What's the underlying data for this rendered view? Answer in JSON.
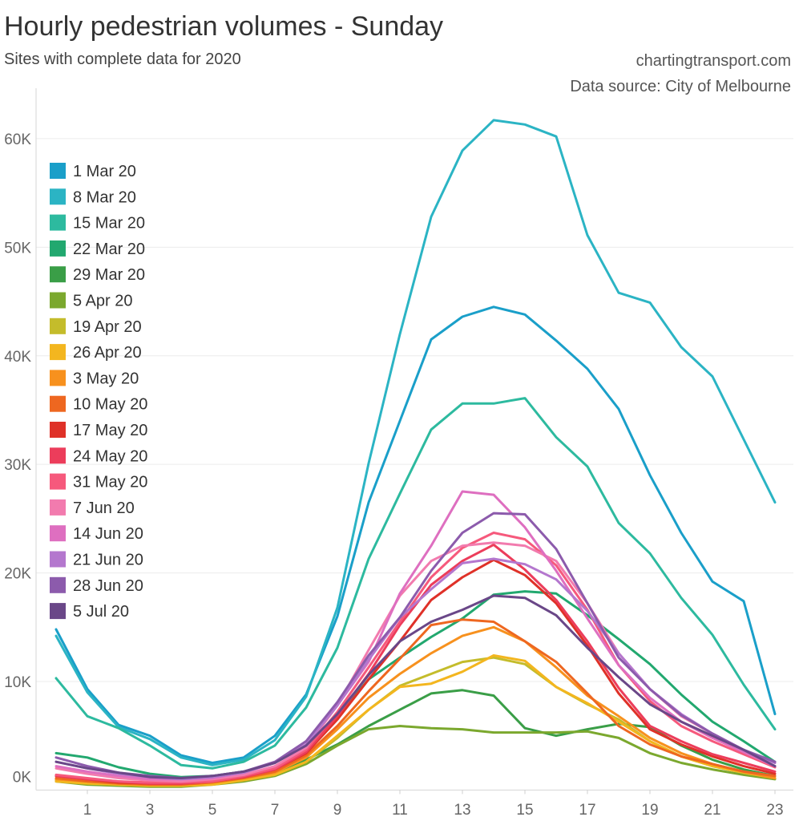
{
  "chart_data": {
    "type": "line",
    "title": "Hourly pedestrian volumes - Sunday",
    "subtitle": "Sites with complete data for 2020",
    "annotations": [
      "chartingtransport.com",
      "Data source: City of Melbourne"
    ],
    "xlabel": "",
    "ylabel": "",
    "x": [
      0,
      1,
      2,
      3,
      4,
      5,
      6,
      7,
      8,
      9,
      10,
      11,
      12,
      13,
      14,
      15,
      16,
      17,
      18,
      19,
      20,
      21,
      22,
      23
    ],
    "xlim": [
      -0.641,
      23.59
    ],
    "ylim": [
      0,
      63170
    ],
    "x_ticks": [
      1,
      3,
      5,
      7,
      9,
      11,
      13,
      15,
      17,
      19,
      21,
      23
    ],
    "x_tick_labels": [
      "1",
      "3",
      "5",
      "7",
      "9",
      "11",
      "13",
      "15",
      "17",
      "19",
      "21",
      "23"
    ],
    "y_ticks": [
      0,
      10000,
      20000,
      30000,
      40000,
      50000,
      60000
    ],
    "y_tick_labels": [
      "0K",
      "10K",
      "20K",
      "30K",
      "40K",
      "50K",
      "60K"
    ],
    "grid": true,
    "legend_position": "top-left",
    "series": [
      {
        "name": "1 Mar 20",
        "color": "#1A9FC9",
        "values": [
          14800,
          9300,
          6000,
          5000,
          3200,
          2500,
          3000,
          5000,
          8800,
          16000,
          26500,
          34000,
          41500,
          43600,
          44500,
          43800,
          41400,
          38800,
          35100,
          29000,
          23700,
          19200,
          17400,
          7000
        ]
      },
      {
        "name": "8 Mar 20",
        "color": "#2BB4C4",
        "values": [
          14200,
          9000,
          5800,
          4700,
          3000,
          2300,
          2800,
          4600,
          8600,
          16800,
          30100,
          42000,
          52800,
          58900,
          61700,
          61300,
          60200,
          51100,
          45800,
          44900,
          40800,
          38100,
          32300,
          26500
        ]
      },
      {
        "name": "15 Mar 20",
        "color": "#2DBA9F",
        "values": [
          10300,
          6800,
          5700,
          4100,
          2300,
          2000,
          2600,
          4100,
          7600,
          13100,
          21300,
          27300,
          33200,
          35600,
          35600,
          36100,
          32500,
          29800,
          24600,
          21800,
          17700,
          14300,
          9700,
          5600
        ]
      },
      {
        "name": "22 Mar 20",
        "color": "#22A86F",
        "values": [
          3400,
          3000,
          2100,
          1500,
          1200,
          1300,
          1700,
          2500,
          4100,
          6800,
          10200,
          12200,
          14100,
          15800,
          18000,
          18300,
          18100,
          16100,
          13900,
          11600,
          8800,
          6300,
          4500,
          2600
        ]
      },
      {
        "name": "29 Mar 20",
        "color": "#3A9E47",
        "values": [
          1300,
          1000,
          700,
          500,
          500,
          800,
          1100,
          1600,
          2800,
          4200,
          5900,
          7400,
          8900,
          9200,
          8700,
          5700,
          5000,
          5600,
          6100,
          5800,
          4100,
          2800,
          1900,
          1300
        ]
      },
      {
        "name": "5 Apr 20",
        "color": "#7BA82E",
        "values": [
          800,
          500,
          400,
          300,
          300,
          500,
          800,
          1300,
          2400,
          4100,
          5600,
          5900,
          5700,
          5600,
          5300,
          5300,
          5300,
          5400,
          4800,
          3400,
          2500,
          1900,
          1400,
          1000
        ]
      },
      {
        "name": "19 Apr 20",
        "color": "#C4BC2B",
        "values": [
          900,
          700,
          500,
          500,
          500,
          600,
          1000,
          1400,
          2600,
          4800,
          7400,
          9600,
          10700,
          11800,
          12200,
          11600,
          9500,
          7900,
          6500,
          4500,
          3100,
          2200,
          1600,
          1100
        ]
      },
      {
        "name": "26 Apr 20",
        "color": "#F3B61F",
        "values": [
          800,
          600,
          500,
          400,
          400,
          500,
          900,
          1400,
          2600,
          5000,
          7400,
          9500,
          9800,
          10900,
          12400,
          11900,
          9500,
          8000,
          6300,
          4500,
          3100,
          2200,
          1600,
          1100
        ]
      },
      {
        "name": "3 May 20",
        "color": "#F7911E",
        "values": [
          1000,
          800,
          600,
          500,
          500,
          700,
          1100,
          1600,
          3000,
          5600,
          8500,
          10700,
          12600,
          14200,
          15000,
          13700,
          11300,
          8700,
          6800,
          4800,
          3400,
          2400,
          1700,
          1100
        ]
      },
      {
        "name": "10 May 20",
        "color": "#EE6720",
        "values": [
          1100,
          800,
          600,
          500,
          500,
          700,
          1100,
          1700,
          3200,
          5900,
          9100,
          12100,
          15200,
          15700,
          15500,
          13700,
          11800,
          8900,
          5900,
          4200,
          3100,
          2400,
          1700,
          1300
        ]
      },
      {
        "name": "17 May 20",
        "color": "#DF3128",
        "values": [
          1300,
          1000,
          700,
          600,
          600,
          800,
          1200,
          1900,
          3400,
          6500,
          10200,
          13700,
          17500,
          19600,
          21200,
          19800,
          17200,
          13300,
          8900,
          5600,
          4200,
          3100,
          2200,
          1500
        ]
      },
      {
        "name": "24 May 20",
        "color": "#EC3D5B",
        "values": [
          1300,
          1000,
          800,
          600,
          600,
          800,
          1200,
          1900,
          3500,
          6800,
          10700,
          15200,
          18900,
          21100,
          22600,
          20300,
          17500,
          13700,
          9400,
          5900,
          4500,
          3300,
          2500,
          1700
        ]
      },
      {
        "name": "31 May 20",
        "color": "#F6597C",
        "values": [
          1400,
          1100,
          800,
          700,
          700,
          800,
          1300,
          2000,
          3700,
          7200,
          11300,
          15500,
          19600,
          22300,
          23700,
          23100,
          20700,
          16600,
          11500,
          8200,
          5900,
          4500,
          3300,
          2100
        ]
      },
      {
        "name": "7 Jun 20",
        "color": "#F27BAE",
        "values": [
          2000,
          1500,
          1100,
          900,
          800,
          1000,
          1400,
          2200,
          3900,
          7800,
          12900,
          17900,
          21100,
          22500,
          22800,
          22500,
          21100,
          17200,
          12600,
          9300,
          6800,
          5200,
          3700,
          2500
        ]
      },
      {
        "name": "14 Jun 20",
        "color": "#DE6FC0",
        "values": [
          2200,
          1700,
          1300,
          1000,
          1000,
          1100,
          1600,
          2500,
          4500,
          7800,
          11800,
          18100,
          22500,
          27500,
          27200,
          24200,
          20200,
          15800,
          11500,
          8500,
          6300,
          4800,
          3500,
          2200
        ]
      },
      {
        "name": "21 Jun 20",
        "color": "#B477CE",
        "values": [
          2600,
          2000,
          1500,
          1200,
          1000,
          1200,
          1600,
          2500,
          4200,
          7800,
          12000,
          15900,
          18500,
          20900,
          21300,
          20800,
          19400,
          16500,
          12600,
          9300,
          7000,
          5200,
          3700,
          2500
        ]
      },
      {
        "name": "28 Jun 20",
        "color": "#8C5BAC",
        "values": [
          3000,
          2200,
          1600,
          1300,
          1100,
          1300,
          1700,
          2600,
          4500,
          8100,
          12400,
          15900,
          20200,
          23700,
          25500,
          25400,
          22200,
          17200,
          12200,
          9300,
          6900,
          5200,
          3700,
          2600
        ]
      },
      {
        "name": "5 Jul 20",
        "color": "#6A4788",
        "values": [
          2600,
          2000,
          1600,
          1200,
          1100,
          1300,
          1700,
          2500,
          4100,
          7000,
          10600,
          13700,
          15500,
          16600,
          17900,
          17700,
          16100,
          13100,
          10400,
          7900,
          6300,
          5000,
          3700,
          2200
        ]
      }
    ]
  }
}
